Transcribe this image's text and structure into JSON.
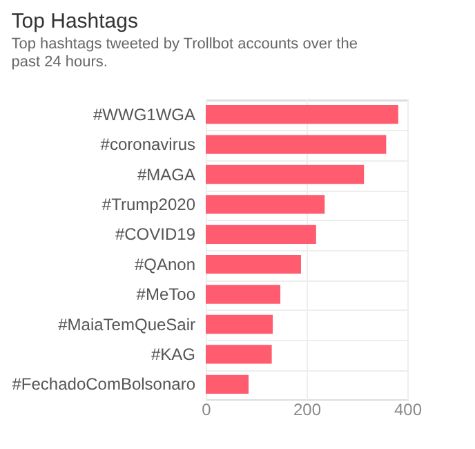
{
  "chart_data": {
    "type": "bar",
    "orientation": "horizontal",
    "title": "Top Hashtags",
    "subtitle": "Top hashtags tweeted by Trollbot accounts over the past 24 hours.",
    "categories": [
      "#WWG1WGA",
      "#coronavirus",
      "#MAGA",
      "#Trump2020",
      "#COVID19",
      "#QAnon",
      "#MeToo",
      "#MaiaTemQueSair",
      "#KAG",
      "#FechadoComBolsonaro"
    ],
    "values": [
      382,
      358,
      314,
      236,
      219,
      189,
      148,
      133,
      131,
      85
    ],
    "color": "#ff5c70",
    "xlim": [
      0,
      400
    ],
    "xticks": [
      0,
      200,
      400
    ],
    "grid": true
  }
}
